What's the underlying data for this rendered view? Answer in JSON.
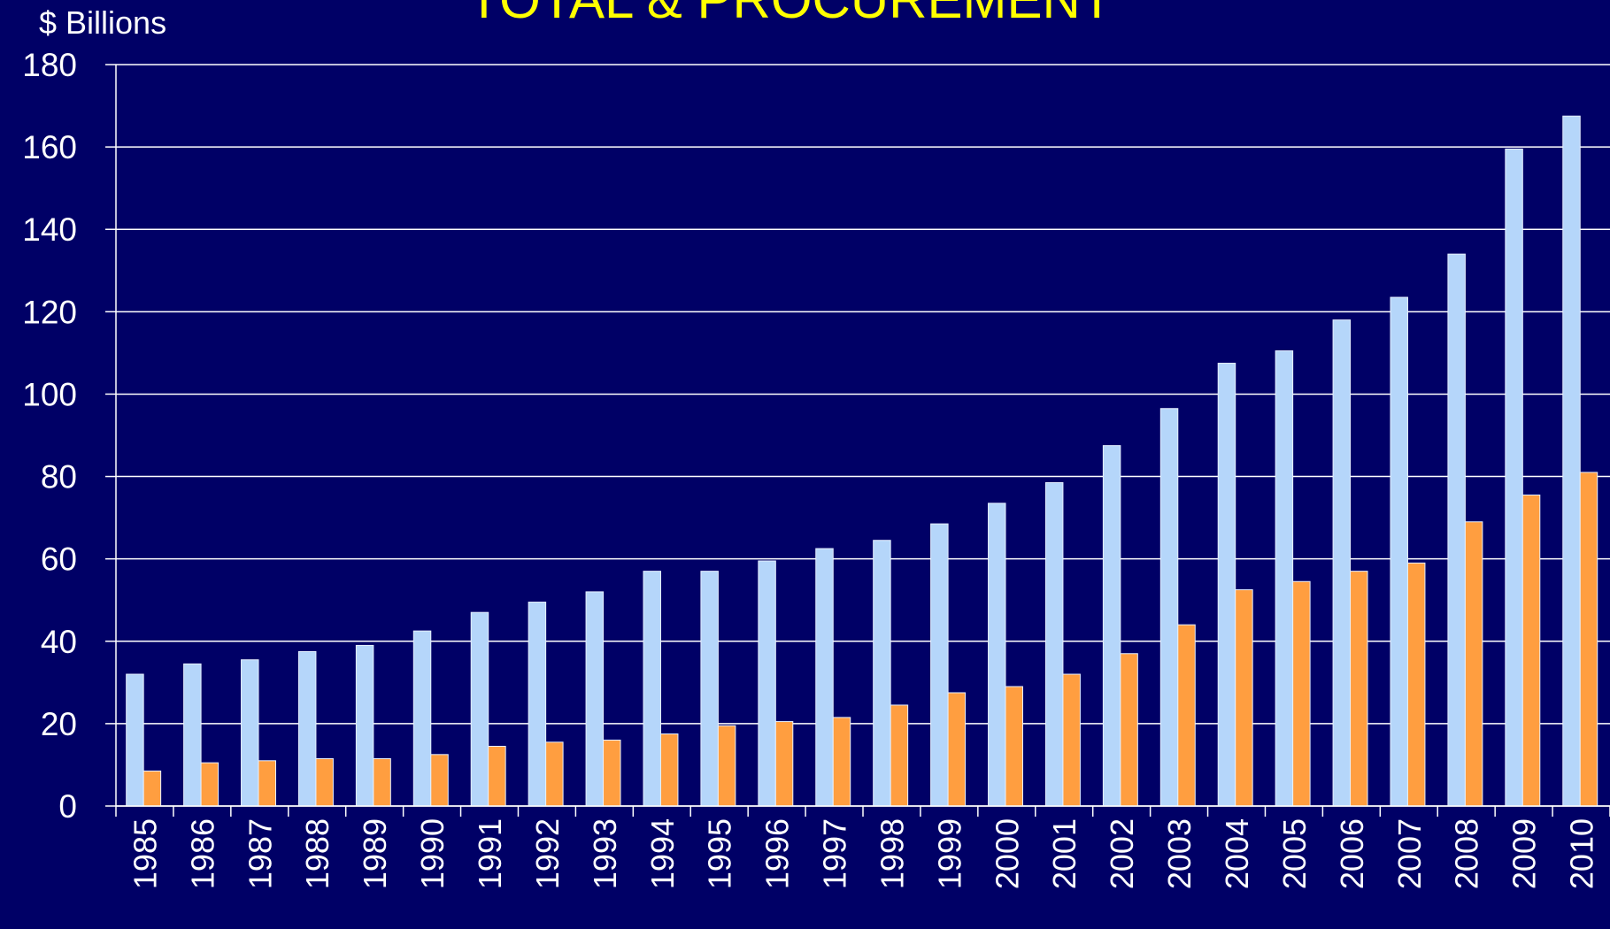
{
  "chart_data": {
    "type": "bar",
    "title": "TOTAL & PROCUREMENT",
    "y_axis_label": "$ Billions",
    "categories": [
      "1985",
      "1986",
      "1987",
      "1988",
      "1989",
      "1990",
      "1991",
      "1992",
      "1993",
      "1994",
      "1995",
      "1996",
      "1997",
      "1998",
      "1999",
      "2000",
      "2001",
      "2002",
      "2003",
      "2004",
      "2005",
      "2006",
      "2007",
      "2008",
      "2009",
      "2010"
    ],
    "series": [
      {
        "color": "#b5d6fa",
        "values": [
          32,
          34.5,
          35.5,
          37.5,
          39,
          42.5,
          47,
          49.5,
          52,
          57,
          57,
          59.5,
          62.5,
          64.5,
          68.5,
          73.5,
          78.5,
          87.5,
          96.5,
          107.5,
          110.5,
          118,
          123.5,
          134,
          159.5,
          167.5
        ]
      },
      {
        "color": "#ff9e40",
        "values": [
          8.5,
          10.5,
          11,
          11.5,
          11.5,
          12.5,
          14.5,
          15.5,
          16,
          17.5,
          19.5,
          20.5,
          21.5,
          24.5,
          27.5,
          29,
          32,
          37,
          44,
          52.5,
          54.5,
          57,
          59,
          69,
          75.5,
          81
        ]
      }
    ],
    "ylim": [
      0,
      180
    ],
    "yticks": [
      0,
      20,
      40,
      60,
      80,
      100,
      120,
      140,
      160,
      180
    ],
    "grid": true
  }
}
